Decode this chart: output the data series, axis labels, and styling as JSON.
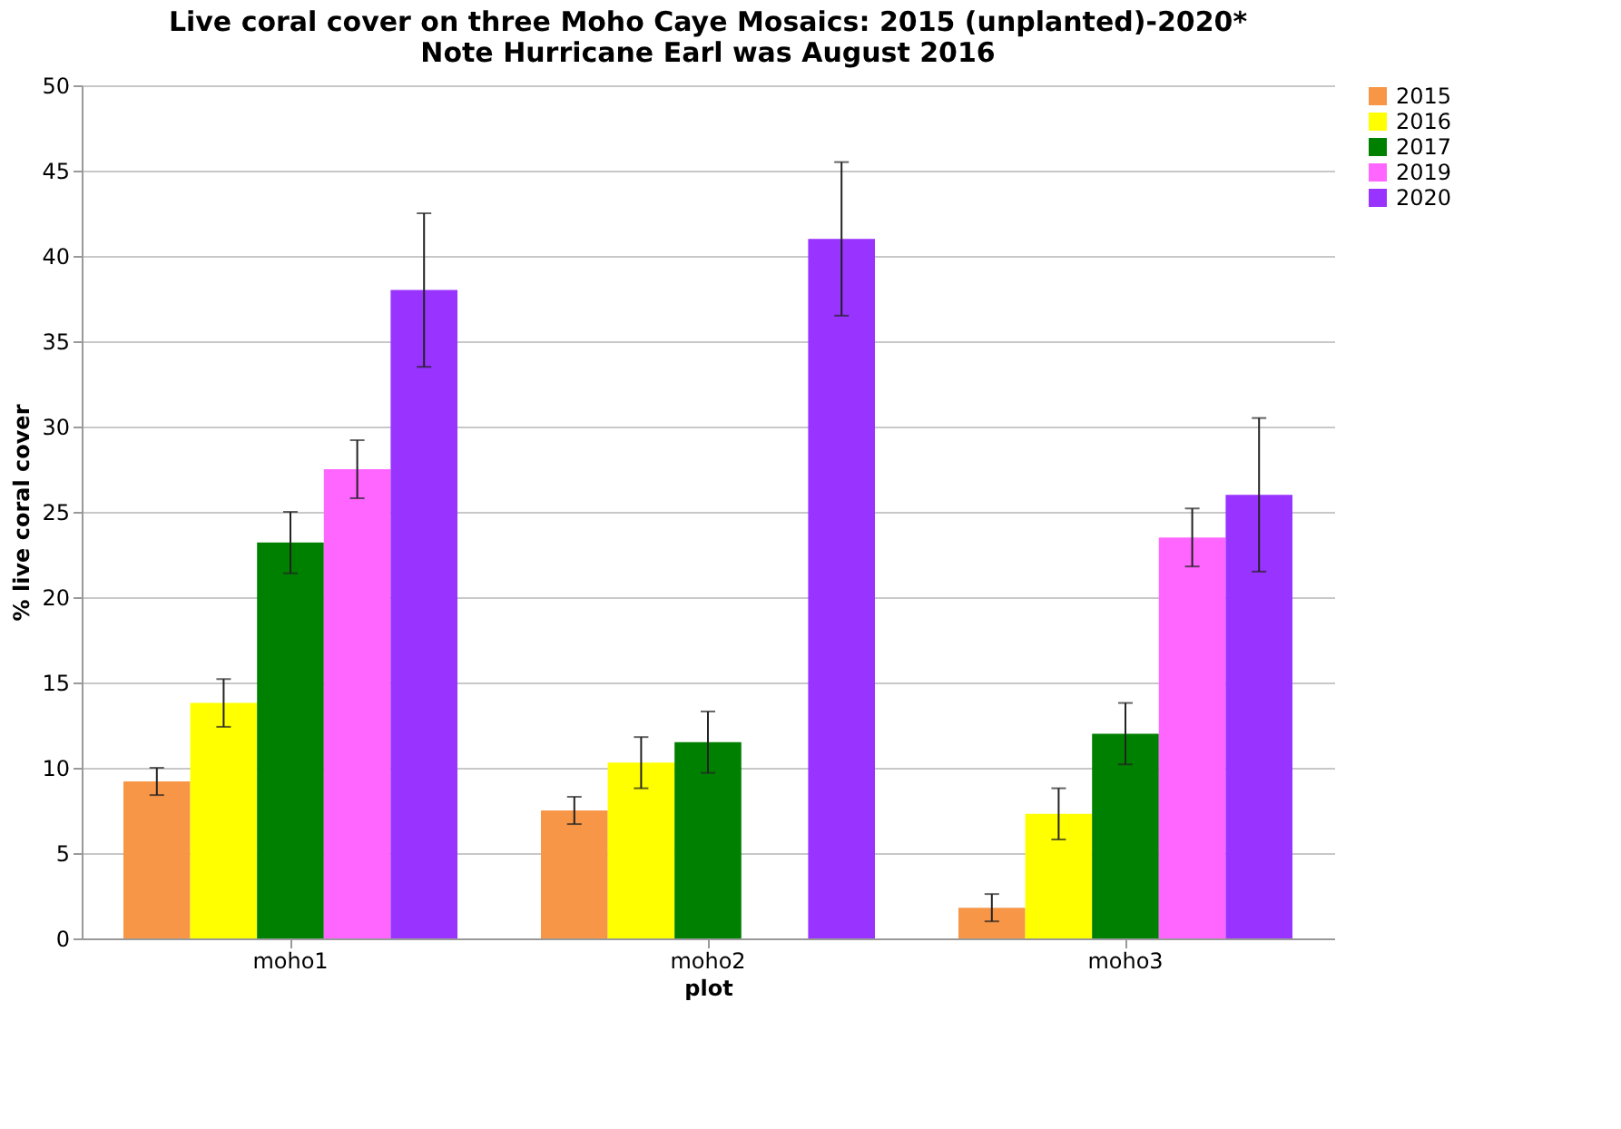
{
  "chart_data": {
    "type": "bar",
    "title": [
      "Live coral cover on three Moho Caye Mosaics: 2015 (unplanted)-2020*",
      "Note Hurricane Earl was August 2016"
    ],
    "xlabel": "plot",
    "ylabel": "% live coral cover",
    "categories": [
      "moho1",
      "moho2",
      "moho3"
    ],
    "series": [
      {
        "name": "2015",
        "color": "#f79646",
        "values": [
          9.2,
          7.5,
          1.8
        ],
        "errors": [
          0.8,
          0.8,
          0.8
        ]
      },
      {
        "name": "2016",
        "color": "#ffff00",
        "values": [
          13.8,
          10.3,
          7.3
        ],
        "errors": [
          1.4,
          1.5,
          1.5
        ]
      },
      {
        "name": "2017",
        "color": "#008000",
        "values": [
          23.2,
          11.5,
          12
        ],
        "errors": [
          1.8,
          1.8,
          1.8
        ]
      },
      {
        "name": "2019",
        "color": "#ff66ff",
        "values": [
          27.5,
          null,
          23.5
        ],
        "errors": [
          1.7,
          null,
          1.7
        ]
      },
      {
        "name": "2020",
        "color": "#9933ff",
        "values": [
          38,
          41,
          26
        ],
        "errors": [
          4.5,
          4.5,
          4.5
        ]
      }
    ],
    "ylim": [
      0,
      50
    ],
    "yticks": [
      0,
      5,
      10,
      15,
      20,
      25,
      30,
      35,
      40,
      45,
      50
    ],
    "grid": "y",
    "legend": "right"
  }
}
